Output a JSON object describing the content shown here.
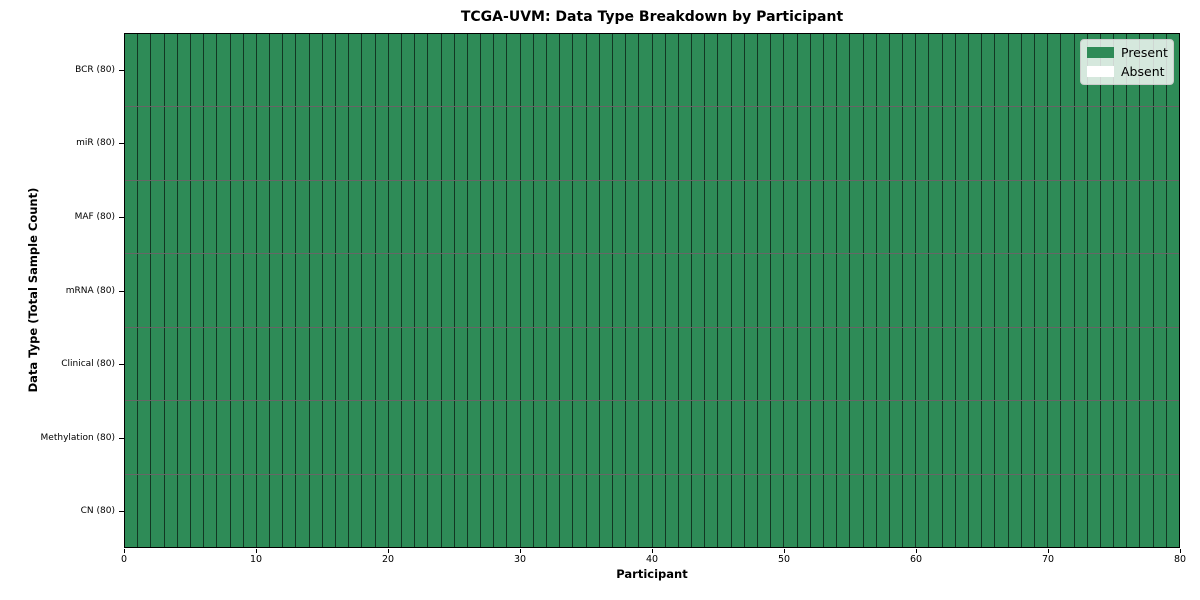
{
  "chart_data": {
    "type": "heatmap",
    "title": "TCGA-UVM: Data Type Breakdown by Participant",
    "xlabel": "Participant",
    "ylabel": "Data Type (Total Sample Count)",
    "xlim": [
      0,
      80
    ],
    "x_ticks": [
      0,
      10,
      20,
      30,
      40,
      50,
      60,
      70,
      80
    ],
    "n_participants": 80,
    "grid": true,
    "rows": [
      {
        "label": "BCR (80)",
        "total": 80,
        "present_count": 80,
        "absent_count": 0
      },
      {
        "label": "miR (80)",
        "total": 80,
        "present_count": 80,
        "absent_count": 0
      },
      {
        "label": "MAF (80)",
        "total": 80,
        "present_count": 80,
        "absent_count": 0
      },
      {
        "label": "mRNA (80)",
        "total": 80,
        "present_count": 80,
        "absent_count": 0
      },
      {
        "label": "Clinical (80)",
        "total": 80,
        "present_count": 80,
        "absent_count": 0
      },
      {
        "label": "Methylation (80)",
        "total": 80,
        "present_count": 80,
        "absent_count": 0
      },
      {
        "label": "CN (80)",
        "total": 80,
        "present_count": 80,
        "absent_count": 0
      }
    ],
    "legend": {
      "position": "upper right",
      "items": [
        {
          "label": "Present",
          "color": "#2e8b57"
        },
        {
          "label": "Absent",
          "color": "#ffffff"
        }
      ]
    },
    "colors": {
      "present": "#2e8b57",
      "absent": "#ffffff",
      "grid_line": "rgba(0,0,0,0.6)",
      "spine": "#000000"
    }
  }
}
